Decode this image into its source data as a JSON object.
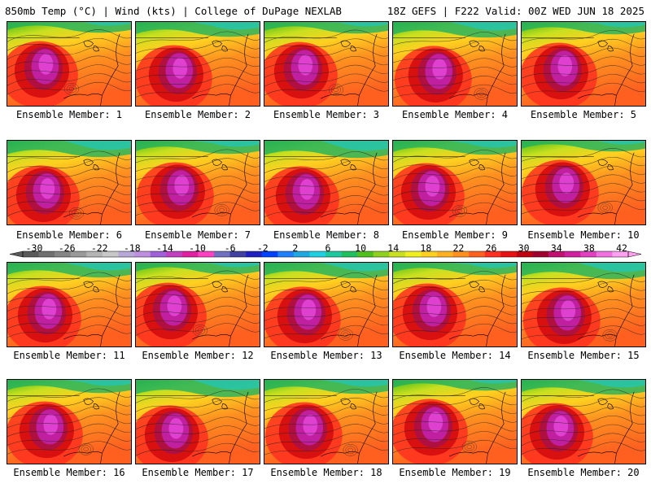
{
  "header": {
    "left": "850mb Temp (°C) | Wind (kts) | College of DuPage NEXLAB",
    "right": "18Z GEFS | F222 Valid: 00Z WED JUN 18 2025"
  },
  "panels": [
    {
      "label": "Ensemble Member: 1"
    },
    {
      "label": "Ensemble Member: 2"
    },
    {
      "label": "Ensemble Member: 3"
    },
    {
      "label": "Ensemble Member: 4"
    },
    {
      "label": "Ensemble Member: 5"
    },
    {
      "label": "Ensemble Member: 6"
    },
    {
      "label": "Ensemble Member: 7"
    },
    {
      "label": "Ensemble Member: 8"
    },
    {
      "label": "Ensemble Member: 9"
    },
    {
      "label": "Ensemble Member: 10"
    },
    {
      "label": "Ensemble Member: 11"
    },
    {
      "label": "Ensemble Member: 12"
    },
    {
      "label": "Ensemble Member: 13"
    },
    {
      "label": "Ensemble Member: 14"
    },
    {
      "label": "Ensemble Member: 15"
    },
    {
      "label": "Ensemble Member: 16"
    },
    {
      "label": "Ensemble Member: 17"
    },
    {
      "label": "Ensemble Member: 18"
    },
    {
      "label": "Ensemble Member: 19"
    },
    {
      "label": "Ensemble Member: 20"
    }
  ],
  "colorbar": {
    "labels": [
      "-30",
      "-26",
      "-22",
      "-18",
      "-14",
      "-10",
      "-6",
      "-2",
      "2",
      "6",
      "10",
      "14",
      "18",
      "22",
      "26",
      "30",
      "34",
      "38",
      "42"
    ],
    "colors": [
      "#5a5a5a",
      "#707070",
      "#858585",
      "#9a9a9a",
      "#b4b4b4",
      "#c8c8c8",
      "#b8a8d8",
      "#c090e0",
      "#a060d8",
      "#c040c0",
      "#e020a0",
      "#ff40c0",
      "#7070c0",
      "#4040a0",
      "#2020c0",
      "#0040ff",
      "#1f7fff",
      "#20a8e0",
      "#20d0e0",
      "#20c8a0",
      "#20c060",
      "#50c020",
      "#90d020",
      "#c8e020",
      "#f0f020",
      "#ffd020",
      "#ffb020",
      "#ff9020",
      "#ff6020",
      "#ff3020",
      "#e81010",
      "#c00010",
      "#a00030",
      "#c01070",
      "#d020a0",
      "#e040c0",
      "#f070e0",
      "#ffa0f0"
    ]
  }
}
